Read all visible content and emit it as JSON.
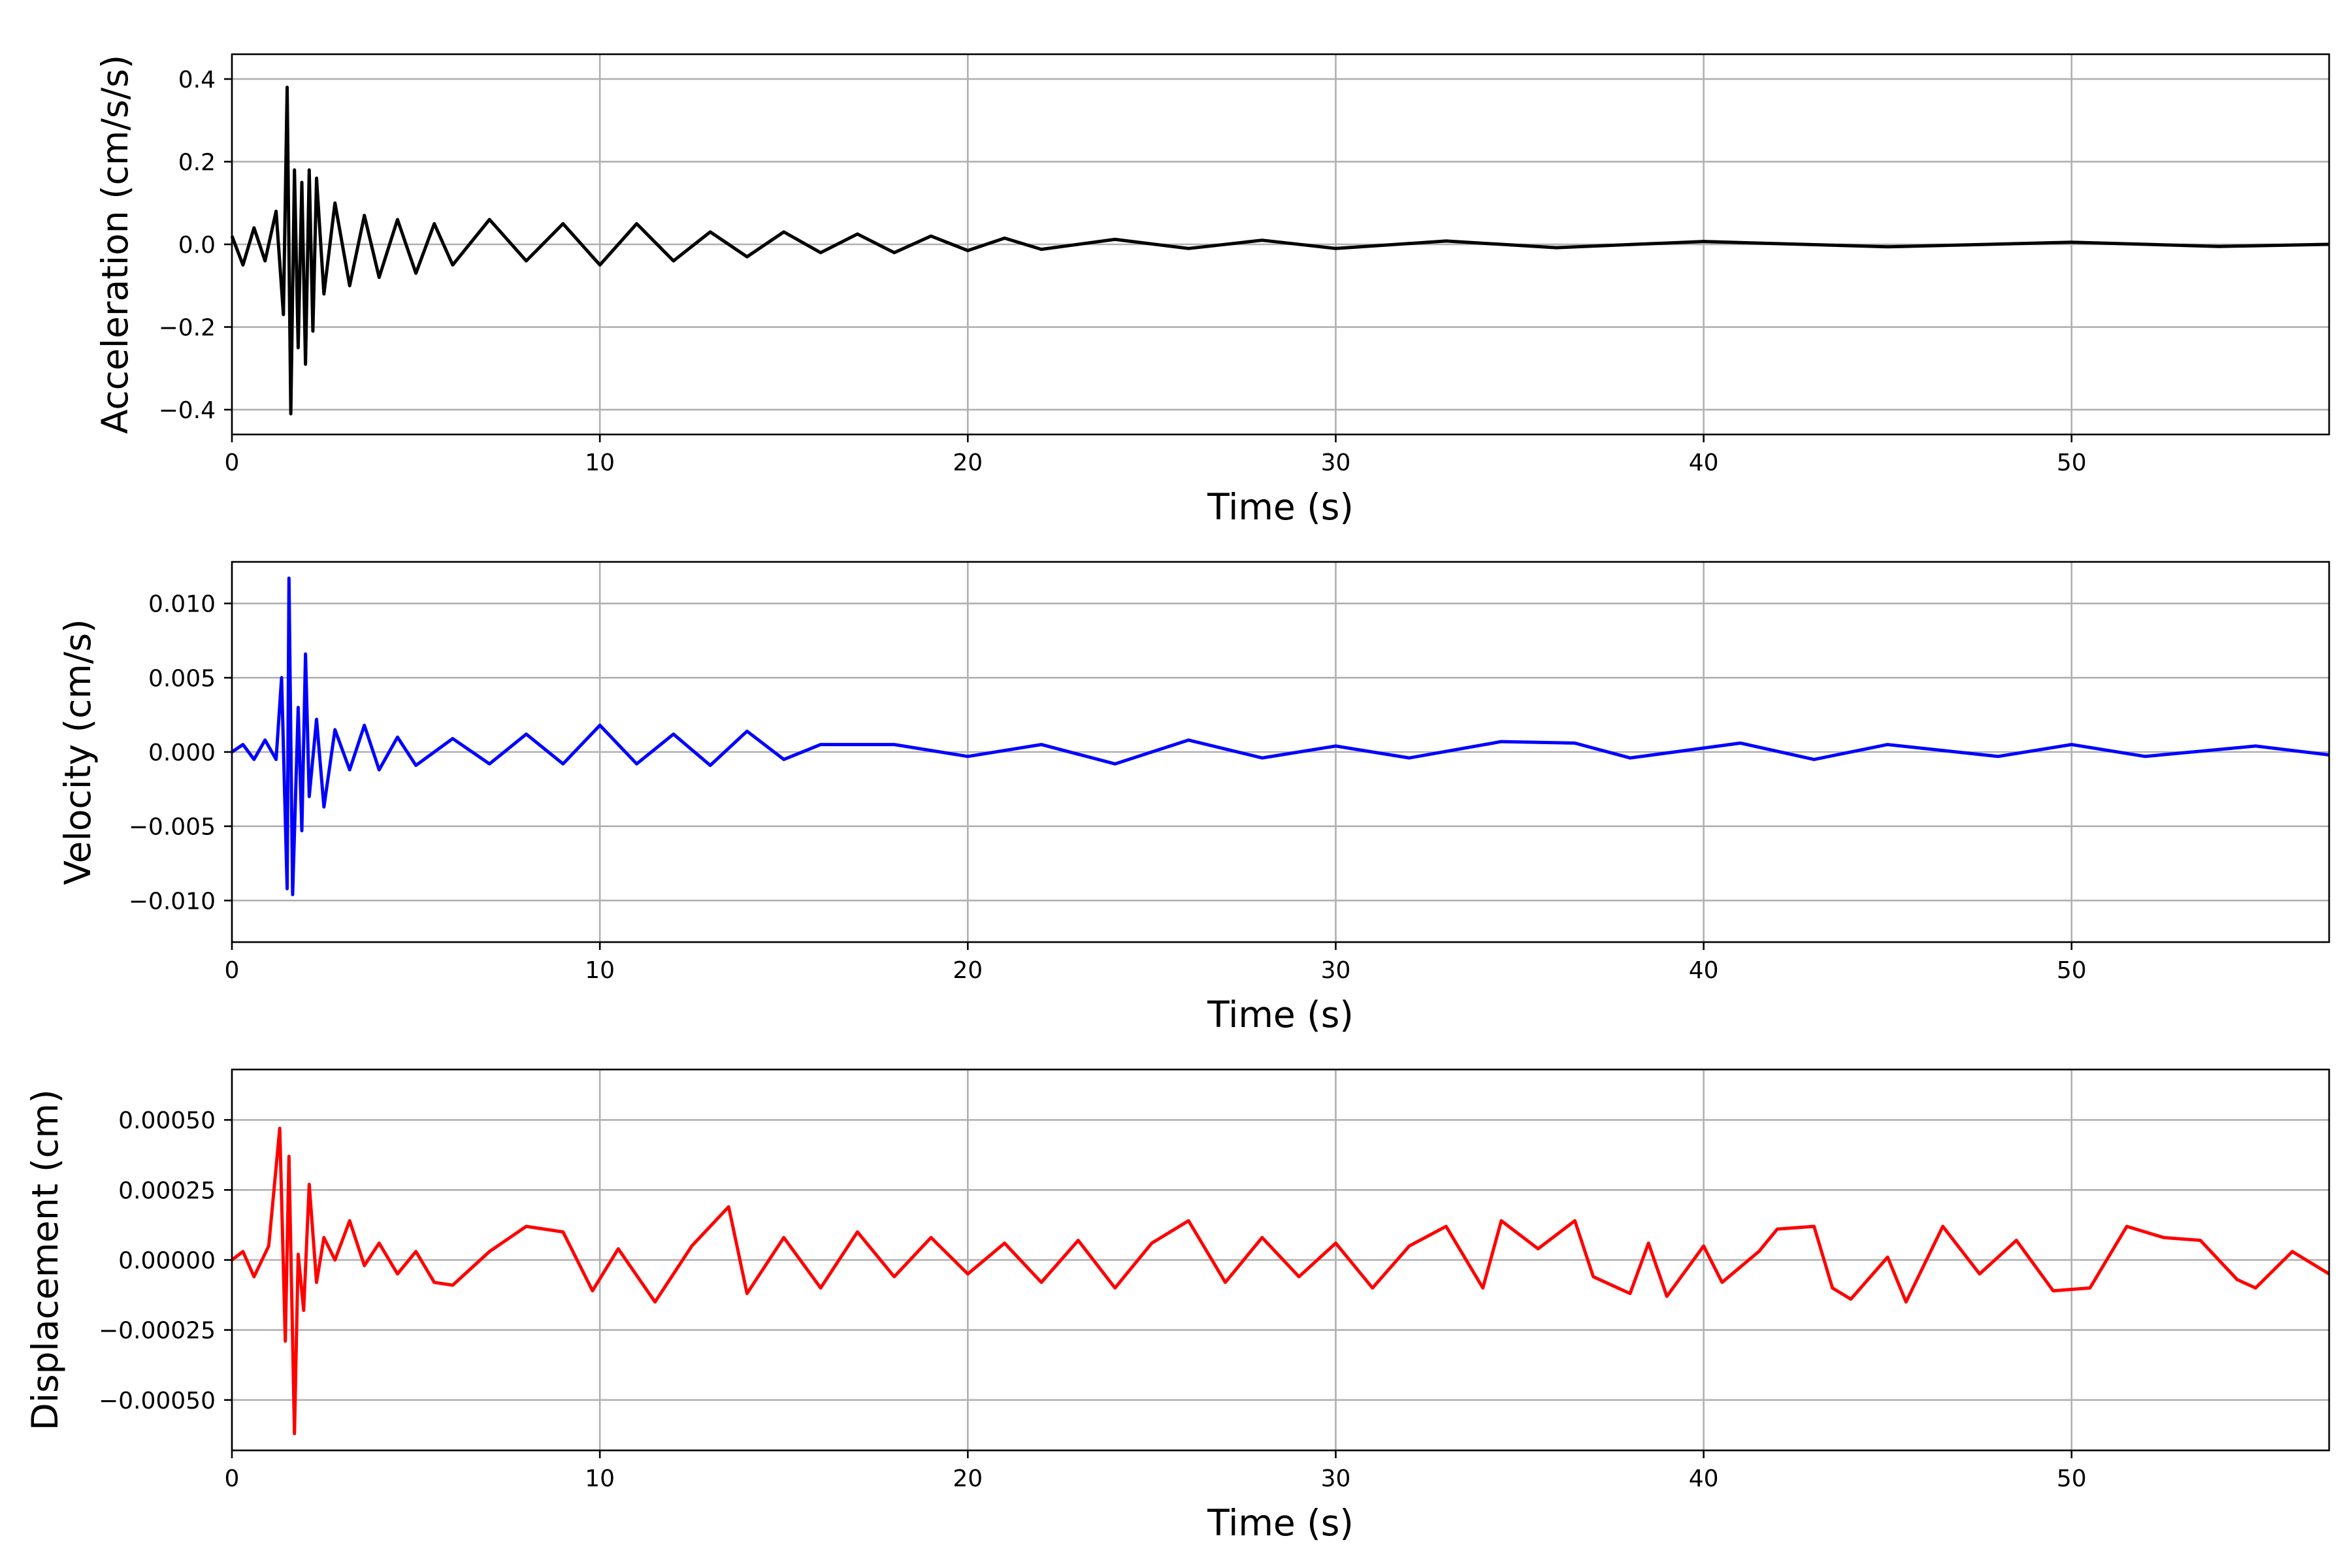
{
  "chart_data": [
    {
      "type": "line",
      "xlabel": "Time (s)",
      "ylabel": "Acceleration (cm/s/s)",
      "xlim": [
        0,
        57
      ],
      "ylim": [
        -0.46,
        0.46
      ],
      "xticks": [
        0,
        10,
        20,
        30,
        40,
        50
      ],
      "xtick_labels": [
        "0",
        "10",
        "20",
        "30",
        "40",
        "50"
      ],
      "yticks": [
        -0.4,
        -0.2,
        0.0,
        0.2,
        0.4
      ],
      "ytick_labels": [
        "−0.4",
        "−0.2",
        "0.0",
        "0.2",
        "0.4"
      ],
      "grid": true,
      "color": "#000000",
      "series": [
        {
          "x": [
            0,
            0.3,
            0.6,
            0.9,
            1.2,
            1.4,
            1.5,
            1.6,
            1.7,
            1.8,
            1.9,
            2.0,
            2.1,
            2.2,
            2.3,
            2.5,
            2.8,
            3.2,
            3.6,
            4.0,
            4.5,
            5.0,
            5.5,
            6.0,
            7.0,
            8.0,
            9.0,
            10.0,
            11.0,
            12.0,
            13.0,
            14.0,
            15.0,
            16.0,
            17.0,
            18.0,
            19.0,
            20.0,
            21.0,
            22.0,
            24.0,
            26.0,
            28.0,
            30.0,
            33.0,
            36.0,
            40.0,
            45.0,
            50.0,
            54.0,
            57.0
          ],
          "y": [
            0.02,
            -0.05,
            0.04,
            -0.04,
            0.08,
            -0.17,
            0.38,
            -0.41,
            0.18,
            -0.25,
            0.15,
            -0.29,
            0.18,
            -0.21,
            0.16,
            -0.12,
            0.1,
            -0.1,
            0.07,
            -0.08,
            0.06,
            -0.07,
            0.05,
            -0.05,
            0.06,
            -0.04,
            0.05,
            -0.05,
            0.05,
            -0.04,
            0.03,
            -0.03,
            0.03,
            -0.02,
            0.025,
            -0.02,
            0.02,
            -0.015,
            0.015,
            -0.012,
            0.012,
            -0.01,
            0.01,
            -0.01,
            0.008,
            -0.008,
            0.007,
            -0.006,
            0.005,
            -0.005,
            0.0
          ]
        }
      ]
    },
    {
      "type": "line",
      "xlabel": "Time (s)",
      "ylabel": "Velocity (cm/s)",
      "xlim": [
        0,
        57
      ],
      "ylim": [
        -0.0128,
        0.0128
      ],
      "xticks": [
        0,
        10,
        20,
        30,
        40,
        50
      ],
      "xtick_labels": [
        "0",
        "10",
        "20",
        "30",
        "40",
        "50"
      ],
      "yticks": [
        -0.01,
        -0.005,
        0.0,
        0.005,
        0.01
      ],
      "ytick_labels": [
        "−0.010",
        "−0.005",
        "0.000",
        "0.005",
        "0.010"
      ],
      "grid": true,
      "color": "#0000ff",
      "series": [
        {
          "x": [
            0,
            0.3,
            0.6,
            0.9,
            1.2,
            1.35,
            1.5,
            1.55,
            1.65,
            1.8,
            1.9,
            2.0,
            2.1,
            2.3,
            2.5,
            2.8,
            3.2,
            3.6,
            4.0,
            4.5,
            5.0,
            6.0,
            7.0,
            8.0,
            9.0,
            10.0,
            11.0,
            12.0,
            13.0,
            14.0,
            15.0,
            16.0,
            18.0,
            20.0,
            22.0,
            24.0,
            26.0,
            28.0,
            30.0,
            32.0,
            34.5,
            36.5,
            38.0,
            41.0,
            43.0,
            45.0,
            48.0,
            50.0,
            52.0,
            55.0,
            57.0
          ],
          "y": [
            0.0,
            0.0005,
            -0.0005,
            0.0008,
            -0.0005,
            0.005,
            -0.0092,
            0.0117,
            -0.0096,
            0.003,
            -0.0053,
            0.0066,
            -0.003,
            0.0022,
            -0.0037,
            0.0015,
            -0.0012,
            0.0018,
            -0.0012,
            0.001,
            -0.0009,
            0.0009,
            -0.0008,
            0.0012,
            -0.0008,
            0.0018,
            -0.0008,
            0.0012,
            -0.0009,
            0.0014,
            -0.0005,
            0.0005,
            0.0005,
            -0.0003,
            0.0005,
            -0.0008,
            0.0008,
            -0.0004,
            0.0004,
            -0.0004,
            0.0007,
            0.0006,
            -0.0004,
            0.0006,
            -0.0005,
            0.0005,
            -0.0003,
            0.0005,
            -0.0003,
            0.0004,
            -0.0002
          ]
        }
      ]
    },
    {
      "type": "line",
      "xlabel": "Time (s)",
      "ylabel": "Displacement (cm)",
      "xlim": [
        0,
        57
      ],
      "ylim": [
        -0.00068,
        0.00068
      ],
      "xticks": [
        0,
        10,
        20,
        30,
        40,
        50
      ],
      "xtick_labels": [
        "0",
        "10",
        "20",
        "30",
        "40",
        "50"
      ],
      "yticks": [
        -0.0005,
        -0.00025,
        0.0,
        0.00025,
        0.0005
      ],
      "ytick_labels": [
        "−0.00050",
        "−0.00025",
        "0.00000",
        "0.00025",
        "0.00050"
      ],
      "grid": true,
      "color": "#ff0000",
      "series": [
        {
          "x": [
            0,
            0.3,
            0.6,
            1.0,
            1.3,
            1.45,
            1.55,
            1.7,
            1.8,
            1.95,
            2.1,
            2.3,
            2.5,
            2.8,
            3.2,
            3.6,
            4.0,
            4.5,
            5.0,
            5.5,
            6.0,
            7.0,
            8.0,
            9.0,
            9.8,
            10.5,
            11.5,
            12.5,
            13.5,
            14.0,
            15.0,
            16.0,
            17.0,
            18.0,
            19.0,
            20.0,
            21.0,
            22.0,
            23.0,
            24.0,
            25.0,
            26.0,
            27.0,
            28.0,
            29.0,
            30.0,
            31.0,
            32.0,
            33.0,
            34.0,
            34.5,
            35.5,
            36.5,
            37.0,
            38.0,
            38.5,
            39.0,
            40.0,
            40.5,
            41.5,
            42.0,
            43.0,
            43.5,
            44.0,
            45.0,
            45.5,
            46.5,
            47.5,
            48.5,
            49.5,
            50.5,
            51.5,
            52.5,
            53.5,
            54.5,
            55.0,
            56.0,
            57.0
          ],
          "y": [
            0.0,
            3e-05,
            -6e-05,
            5e-05,
            0.00047,
            -0.00029,
            0.00037,
            -0.00062,
            2e-05,
            -0.00018,
            0.00027,
            -8e-05,
            8e-05,
            0.0,
            0.00014,
            -2e-05,
            6e-05,
            -5e-05,
            3e-05,
            -8e-05,
            -9e-05,
            3e-05,
            0.00012,
            0.0001,
            -0.00011,
            4e-05,
            -0.00015,
            5e-05,
            0.00019,
            -0.00012,
            8e-05,
            -0.0001,
            0.0001,
            -6e-05,
            8e-05,
            -5e-05,
            6e-05,
            -8e-05,
            7e-05,
            -0.0001,
            6e-05,
            0.00014,
            -8e-05,
            8e-05,
            -6e-05,
            6e-05,
            -0.0001,
            5e-05,
            0.00012,
            -0.0001,
            0.00014,
            4e-05,
            0.00014,
            -6e-05,
            -0.00012,
            6e-05,
            -0.00013,
            5e-05,
            -8e-05,
            3e-05,
            0.00011,
            0.00012,
            -0.0001,
            -0.00014,
            1e-05,
            -0.00015,
            0.00012,
            -5e-05,
            7e-05,
            -0.00011,
            -0.0001,
            0.00012,
            8e-05,
            7e-05,
            -7e-05,
            -0.0001,
            3e-05,
            -5e-05
          ]
        }
      ]
    }
  ]
}
